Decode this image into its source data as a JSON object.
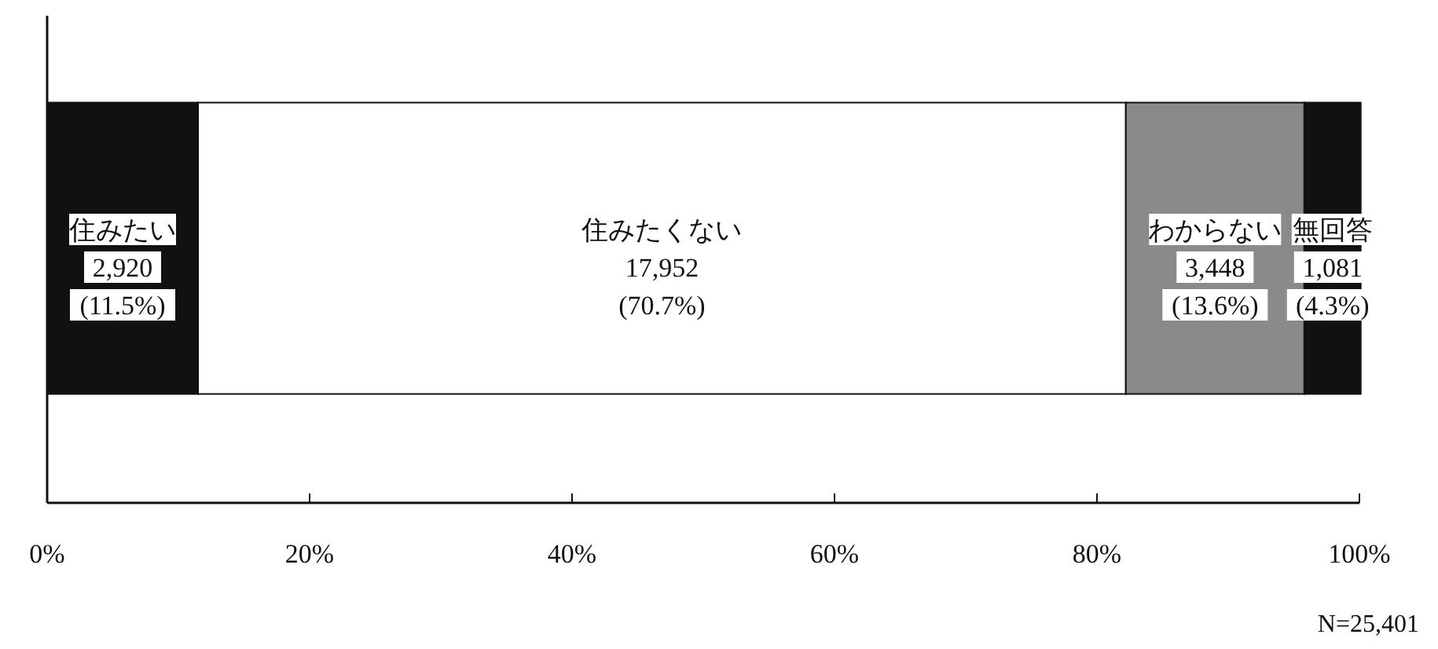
{
  "chart_data": {
    "type": "bar",
    "orientation": "horizontal",
    "stacked": true,
    "categories": [
      null
    ],
    "series": [
      {
        "name": "住みたい",
        "color": "#111111",
        "values": [
          11.5
        ],
        "value_labels": [
          "2,920\n(11.5%)"
        ]
      },
      {
        "name": "住みたくない",
        "color": "#ffffff",
        "values": [
          70.7
        ],
        "value_labels": [
          "17,952\n(70.7%)"
        ]
      },
      {
        "name": "わからない",
        "color": "#8a8a8a",
        "values": [
          13.6
        ],
        "value_labels": [
          "3,448\n(13.6%)"
        ]
      },
      {
        "name": "無回答",
        "color": "#111111",
        "values": [
          4.3
        ],
        "value_labels": [
          "1,081\n(4.3%)"
        ]
      }
    ],
    "xlim": [
      0,
      100
    ],
    "xticks": [
      {
        "value": 0,
        "label": "0%"
      },
      {
        "value": 20,
        "label": "20%"
      },
      {
        "value": 40,
        "label": "40%"
      },
      {
        "value": 60,
        "label": "60%"
      },
      {
        "value": 80,
        "label": "80%"
      },
      {
        "value": 100,
        "label": "100%"
      }
    ],
    "grid": false,
    "annotations": [
      "N=25,401"
    ]
  }
}
